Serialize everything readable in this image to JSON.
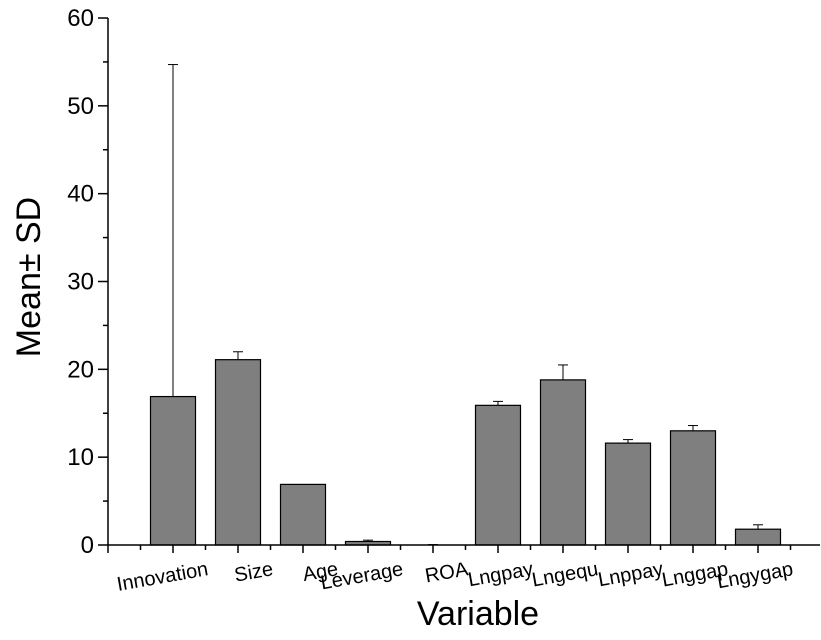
{
  "chart_data": {
    "type": "bar",
    "title": "",
    "xlabel": "Variable",
    "ylabel": "Mean± SD",
    "ylim": [
      0,
      60
    ],
    "yticks": [
      "0",
      "10",
      "20",
      "30",
      "40",
      "50",
      "60"
    ],
    "categories": [
      "Innovation",
      "Size",
      "Age",
      "Leverage",
      "ROA",
      "Lngpay",
      "Lngequ",
      "Lnppay",
      "Lnggap",
      "Lngygap"
    ],
    "series": [
      {
        "values": [
          16.9,
          21.1,
          6.9,
          0.4,
          0.02,
          15.9,
          18.8,
          11.6,
          13.0,
          1.8
        ],
        "errors": [
          37.8,
          0.9,
          0.0,
          0.15,
          0.03,
          0.45,
          1.7,
          0.4,
          0.6,
          0.5
        ]
      }
    ],
    "grid": false,
    "legend": "none",
    "colors": {
      "bar_fill": "#7f7f7f",
      "bar_stroke": "#000000",
      "axis": "#000000",
      "error_bar": "#000000"
    }
  }
}
